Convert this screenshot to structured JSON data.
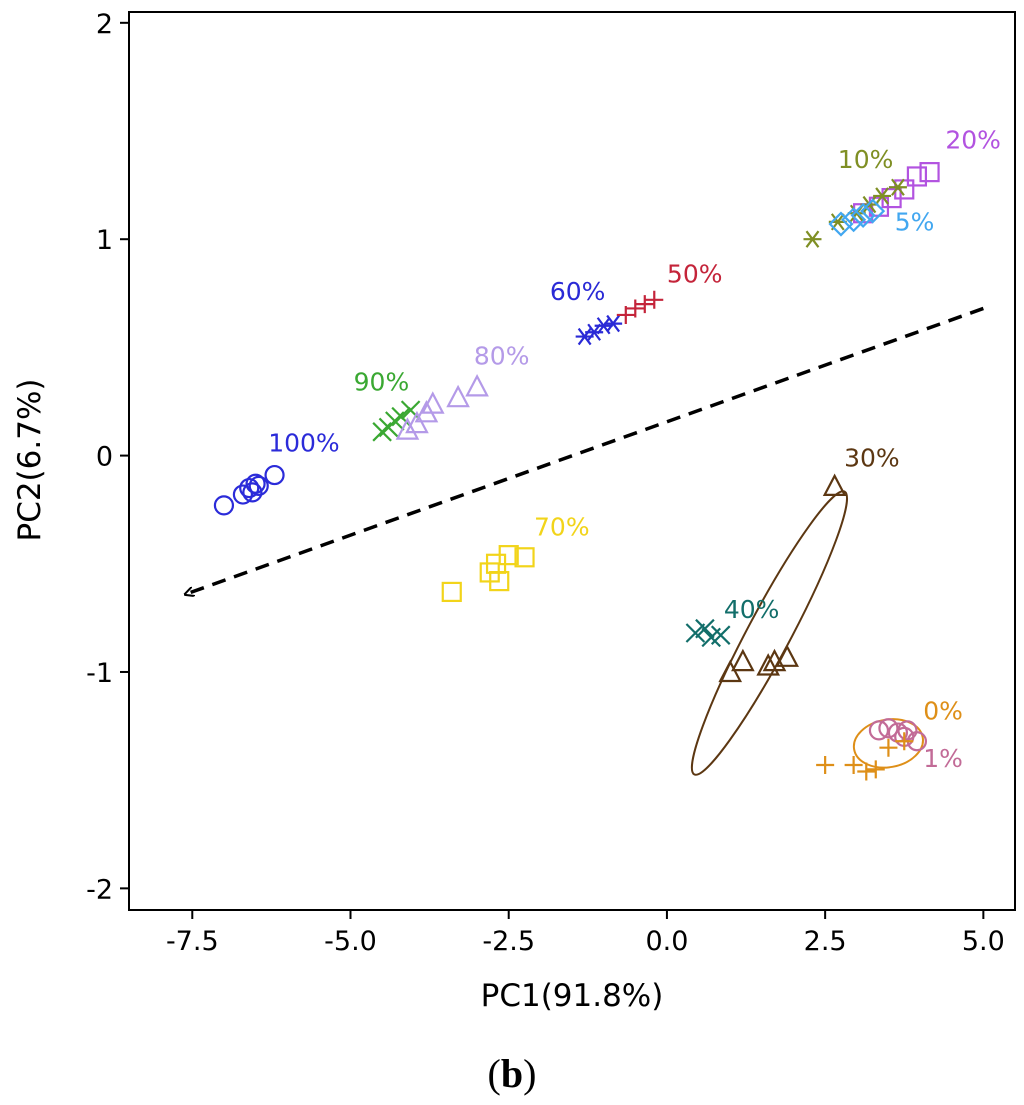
{
  "chart_data": {
    "type": "scatter",
    "title": "",
    "xlabel": "PC1(91.8%)",
    "ylabel": "PC2(6.7%)",
    "xlim": [
      -8.5,
      5.5
    ],
    "ylim": [
      -2.1,
      2.05
    ],
    "xticks": [
      -7.5,
      -5.0,
      -2.5,
      0.0,
      2.5,
      5.0
    ],
    "xtick_labels": [
      "-7.5",
      "-5.0",
      "-2.5",
      "0.0",
      "2.5",
      "5.0"
    ],
    "yticks": [
      -2,
      -1,
      0,
      1,
      2
    ],
    "ytick_labels": [
      "-2",
      "-1",
      "0",
      "1",
      "2"
    ],
    "grid": false,
    "legend": "none",
    "series": [
      {
        "name": "100%",
        "marker": "circle",
        "color": "#2b2bd9",
        "x": [
          -7.0,
          -6.7,
          -6.6,
          -6.5,
          -6.55,
          -6.45,
          -6.2
        ],
        "y": [
          -0.23,
          -0.18,
          -0.15,
          -0.13,
          -0.17,
          -0.14,
          -0.09
        ],
        "label_at": [
          -6.3,
          0.02
        ]
      },
      {
        "name": "90%",
        "marker": "x",
        "color": "#3aa832",
        "x": [
          -4.5,
          -4.4,
          -4.3,
          -4.2,
          -4.05
        ],
        "y": [
          0.11,
          0.13,
          0.16,
          0.18,
          0.21
        ],
        "label_at": [
          -4.95,
          0.3
        ]
      },
      {
        "name": "80%",
        "marker": "triangle",
        "color": "#b49ae8",
        "x": [
          -4.1,
          -3.95,
          -3.8,
          -3.7,
          -3.3,
          -3.0
        ],
        "y": [
          0.12,
          0.15,
          0.2,
          0.24,
          0.27,
          0.32
        ],
        "label_at": [
          -3.05,
          0.42
        ]
      },
      {
        "name": "70%",
        "marker": "square",
        "color": "#f2d41a",
        "x": [
          -3.4,
          -2.8,
          -2.7,
          -2.65,
          -2.5,
          -2.25
        ],
        "y": [
          -0.63,
          -0.54,
          -0.5,
          -0.58,
          -0.46,
          -0.47
        ],
        "label_at": [
          -2.1,
          -0.37
        ]
      },
      {
        "name": "60%",
        "marker": "asterisk",
        "color": "#2a2ad6",
        "x": [
          -1.3,
          -1.15,
          -1.0,
          -0.85
        ],
        "y": [
          0.55,
          0.57,
          0.6,
          0.61
        ],
        "label_at": [
          -1.85,
          0.72
        ]
      },
      {
        "name": "50%",
        "marker": "plus",
        "color": "#c4243a",
        "x": [
          -0.65,
          -0.5,
          -0.35,
          -0.2
        ],
        "y": [
          0.65,
          0.68,
          0.7,
          0.72
        ],
        "label_at": [
          0.0,
          0.8
        ]
      },
      {
        "name": "40%",
        "marker": "x",
        "color": "#126e6a",
        "x": [
          0.45,
          0.6,
          0.7,
          0.85
        ],
        "y": [
          -0.82,
          -0.8,
          -0.84,
          -0.83
        ],
        "label_at": [
          0.9,
          -0.75
        ]
      },
      {
        "name": "30%",
        "marker": "triangle",
        "color": "#5c3712",
        "x": [
          1.0,
          1.2,
          1.6,
          1.7,
          1.9,
          2.65
        ],
        "y": [
          -1.0,
          -0.95,
          -0.97,
          -0.95,
          -0.93,
          -0.14
        ],
        "label_at": [
          2.8,
          -0.05
        ]
      },
      {
        "name": "20%",
        "marker": "square",
        "color": "#b253e0",
        "x": [
          3.1,
          3.35,
          3.55,
          3.75,
          3.95,
          4.15
        ],
        "y": [
          1.12,
          1.15,
          1.19,
          1.23,
          1.29,
          1.31
        ],
        "label_at": [
          4.4,
          1.42
        ]
      },
      {
        "name": "10%",
        "marker": "asterisk",
        "color": "#7f8f24",
        "x": [
          2.3,
          2.7,
          3.0,
          3.2,
          3.4,
          3.65
        ],
        "y": [
          1.0,
          1.08,
          1.12,
          1.16,
          1.2,
          1.24
        ],
        "label_at": [
          2.7,
          1.33
        ]
      },
      {
        "name": "5%",
        "marker": "diamond",
        "color": "#42a7f0",
        "x": [
          2.75,
          2.95,
          3.1,
          3.25
        ],
        "y": [
          1.07,
          1.09,
          1.11,
          1.13
        ],
        "label_at": [
          3.6,
          1.04
        ]
      },
      {
        "name": "1%",
        "marker": "circle",
        "color": "#c26b97",
        "x": [
          3.35,
          3.5,
          3.65,
          3.75,
          3.8,
          3.95
        ],
        "y": [
          -1.27,
          -1.26,
          -1.28,
          -1.3,
          -1.27,
          -1.32
        ],
        "label_at": [
          4.05,
          -1.44
        ]
      },
      {
        "name": "0%",
        "marker": "plus",
        "color": "#de8f18",
        "x": [
          2.5,
          2.95,
          3.15,
          3.3,
          3.5,
          3.75
        ],
        "y": [
          -1.43,
          -1.43,
          -1.46,
          -1.45,
          -1.35,
          -1.32
        ],
        "label_at": [
          4.05,
          -1.22
        ]
      }
    ],
    "ellipses": [
      {
        "group": "30%",
        "color": "#5c3712",
        "cx": 1.62,
        "cy": -0.82,
        "rx": 0.34,
        "ry": 0.74,
        "angle_deg": 28
      },
      {
        "group": "0%",
        "color": "#de8f18",
        "cx": 3.5,
        "cy": -1.33,
        "rx": 0.55,
        "ry": 0.11,
        "angle_deg": -10
      }
    ],
    "trend_arrow": {
      "from": [
        5.0,
        0.68
      ],
      "to": [
        -7.6,
        -0.64
      ],
      "style": "dashed",
      "color": "#000000"
    }
  },
  "caption": {
    "open": "(",
    "letter": "b",
    "close": ")"
  }
}
